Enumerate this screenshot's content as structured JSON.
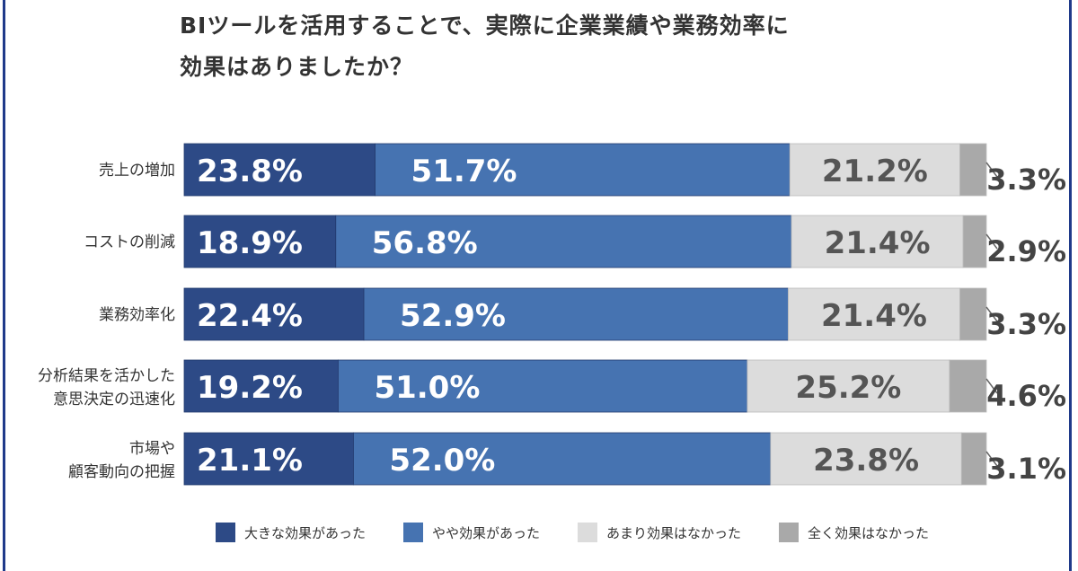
{
  "chart_data": {
    "type": "bar",
    "orientation": "horizontal-stacked-100",
    "title": "BIツールを活用することで、実際に企業業績や業務効率に\n効果はありましたか？",
    "categories": [
      [
        "売上の増加"
      ],
      [
        "コストの削減"
      ],
      [
        "業務効率化"
      ],
      [
        "分析結果を活かした",
        "意思決定の迅速化"
      ],
      [
        "市場や",
        "顧客動向の把握"
      ]
    ],
    "series": [
      {
        "name": "大きな効果があった",
        "color": "#2d4a86",
        "values": [
          23.8,
          18.9,
          22.4,
          19.2,
          21.1
        ]
      },
      {
        "name": "やや効果があった",
        "color": "#4673b1",
        "values": [
          51.7,
          56.8,
          52.9,
          51.0,
          52.0
        ]
      },
      {
        "name": "あまり効果はなかった",
        "color": "#dcdcdc",
        "values": [
          21.2,
          21.4,
          21.4,
          25.2,
          23.8
        ]
      },
      {
        "name": "全く効果はなかった",
        "color": "#a9a9a9",
        "values": [
          3.3,
          2.9,
          3.3,
          4.6,
          3.1
        ]
      }
    ],
    "value_suffix": "%",
    "xlim": [
      0,
      100
    ],
    "legend": "bottom"
  }
}
